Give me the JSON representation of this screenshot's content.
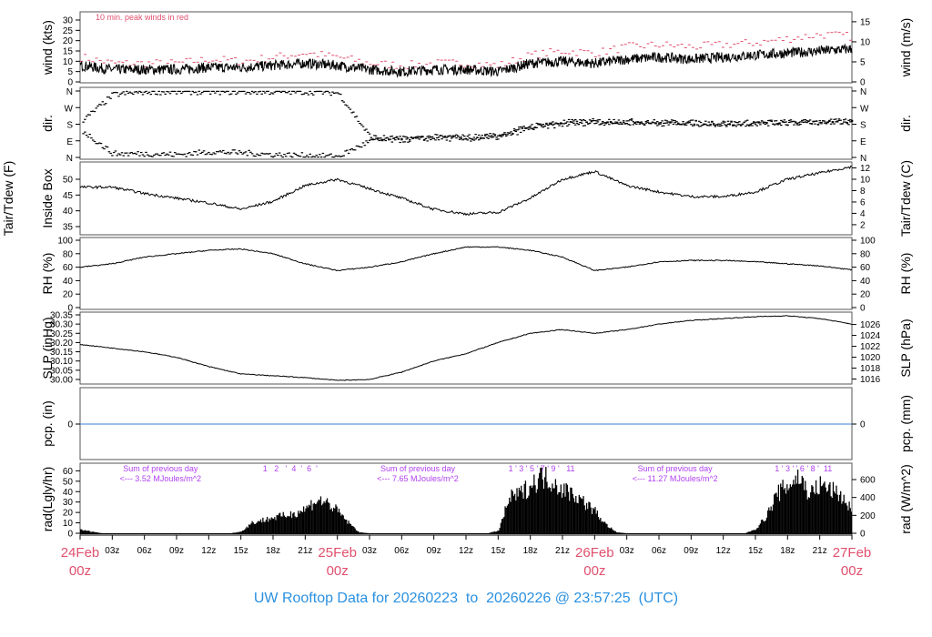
{
  "title": "UW Rooftop Data for 20260223  to  20260226 @ 23:57:25  (UTC)",
  "colors": {
    "peak": "#e0506e",
    "line": "#000000",
    "pcp": "#3a7fd0",
    "annotation": "#b040f0",
    "date": "#e0506e",
    "title": "#2a90e0"
  },
  "x_axis": {
    "range_hours": [
      0,
      72
    ],
    "hour_ticks": [
      "03z",
      "06z",
      "09z",
      "12z",
      "15z",
      "18z",
      "21z"
    ],
    "day_labels": [
      {
        "date": "24Feb",
        "hour": "00z"
      },
      {
        "date": "25Feb",
        "hour": "00z"
      },
      {
        "date": "26Feb",
        "hour": "00z"
      },
      {
        "date": "27Feb",
        "hour": "00z"
      }
    ]
  },
  "chart_data": [
    {
      "type": "line",
      "id": "wind",
      "ylabel": "wind (kts)",
      "ylabel_right": "wind (m/s)",
      "ylim": [
        0,
        32
      ],
      "yticks": [
        0,
        5,
        10,
        15,
        20,
        25,
        30
      ],
      "yticks_right": [
        0,
        5,
        10,
        15
      ],
      "annotation": "10 min. peak winds in red",
      "x_hours": [
        0,
        3,
        6,
        9,
        12,
        15,
        18,
        21,
        24,
        27,
        30,
        33,
        36,
        39,
        42,
        45,
        48,
        51,
        54,
        57,
        60,
        63,
        66,
        69,
        72
      ],
      "series": [
        {
          "name": "mean",
          "values": [
            8,
            6,
            6,
            6,
            7,
            7,
            8,
            9,
            8,
            6,
            5,
            6,
            6,
            5,
            9,
            10,
            9,
            11,
            12,
            11,
            12,
            13,
            14,
            15,
            16
          ]
        },
        {
          "name": "10 min. peak",
          "values": [
            12,
            9,
            9,
            9,
            11,
            10,
            12,
            14,
            12,
            9,
            8,
            9,
            9,
            8,
            13,
            15,
            14,
            17,
            18,
            17,
            18,
            19,
            21,
            23,
            22
          ]
        }
      ]
    },
    {
      "type": "scatter",
      "id": "dir",
      "ylabel": "dir.",
      "ylabel_right": "dir.",
      "yticks": [
        "N",
        "E",
        "S",
        "W",
        "N"
      ],
      "x_hours": [
        0,
        3,
        6,
        9,
        12,
        15,
        18,
        21,
        24,
        27,
        30,
        33,
        36,
        39,
        42,
        45,
        48,
        51,
        54,
        57,
        60,
        63,
        66,
        69,
        72
      ],
      "series": [
        {
          "name": "primary",
          "values": [
            190,
            340,
            355,
            355,
            355,
            355,
            355,
            355,
            350,
            110,
            100,
            110,
            110,
            120,
            170,
            190,
            195,
            195,
            190,
            188,
            185,
            188,
            190,
            192,
            195
          ]
        },
        {
          "name": "secondary",
          "values": [
            150,
            20,
            20,
            15,
            30,
            25,
            15,
            10,
            5,
            90,
            95,
            105,
            100,
            110,
            160,
            180,
            190,
            190,
            185,
            183,
            180,
            185,
            188,
            190,
            192
          ]
        }
      ]
    },
    {
      "type": "line",
      "id": "temp",
      "ylabel": "Tair/Tdew (F)",
      "ylabel2": "Inside Box",
      "ylabel_right": "Tair/Tdew (C)",
      "yticks": [
        35,
        40,
        45,
        50
      ],
      "yticks_right": [
        2,
        4,
        6,
        8,
        10,
        12
      ],
      "x_hours": [
        0,
        3,
        6,
        9,
        12,
        15,
        18,
        21,
        24,
        27,
        30,
        33,
        36,
        39,
        42,
        45,
        48,
        51,
        54,
        57,
        60,
        63,
        66,
        69,
        72
      ],
      "values": [
        47.5,
        47.5,
        45.5,
        44,
        42.5,
        40.5,
        43,
        48,
        50,
        47,
        44,
        40.5,
        39,
        39.5,
        44,
        50,
        52.5,
        48,
        46,
        44.5,
        44.5,
        46,
        50,
        52,
        54
      ]
    },
    {
      "type": "line",
      "id": "rh",
      "ylabel": "RH (%)",
      "ylabel_right": "RH (%)",
      "ylim": [
        0,
        100
      ],
      "yticks": [
        0,
        20,
        40,
        60,
        80,
        100
      ],
      "x_hours": [
        0,
        3,
        6,
        9,
        12,
        15,
        18,
        21,
        24,
        27,
        30,
        33,
        36,
        39,
        42,
        45,
        48,
        51,
        54,
        57,
        60,
        63,
        66,
        69,
        72
      ],
      "values": [
        60,
        65,
        75,
        80,
        85,
        87,
        80,
        65,
        55,
        60,
        68,
        80,
        90,
        90,
        85,
        75,
        55,
        60,
        68,
        70,
        70,
        68,
        65,
        62,
        56
      ]
    },
    {
      "type": "line",
      "id": "slp",
      "ylabel": "SLP (inHg)",
      "ylabel_right": "SLP (hPa)",
      "yticks": [
        "30.00",
        "30.05",
        "30.10",
        "30.15",
        "30.20",
        "30.25",
        "30.30",
        "30.35"
      ],
      "yticks_right": [
        1016,
        1018,
        1020,
        1022,
        1024,
        1026
      ],
      "x_hours": [
        0,
        3,
        6,
        9,
        12,
        15,
        18,
        21,
        24,
        27,
        30,
        33,
        36,
        39,
        42,
        45,
        48,
        51,
        54,
        57,
        60,
        63,
        66,
        69,
        72
      ],
      "values": [
        30.19,
        30.17,
        30.15,
        30.12,
        30.07,
        30.03,
        30.02,
        30.01,
        29.995,
        30.0,
        30.04,
        30.1,
        30.14,
        30.2,
        30.25,
        30.27,
        30.25,
        30.27,
        30.3,
        30.32,
        30.33,
        30.34,
        30.345,
        30.33,
        30.3
      ]
    },
    {
      "type": "line",
      "id": "pcp",
      "ylabel": "pcp. (in)",
      "ylabel_right": "pcp. (mm)",
      "yticks": [
        0
      ],
      "yticks_right": [
        0
      ],
      "x_hours": [
        0,
        72
      ],
      "values": [
        0,
        0
      ]
    },
    {
      "type": "area",
      "id": "rad",
      "ylabel": "rad(Lgly/hr)",
      "ylabel_right": "rad (W/m^2)",
      "yticks": [
        0,
        10,
        20,
        30,
        40,
        50,
        60
      ],
      "yticks_right": [
        0,
        200,
        400,
        600
      ],
      "unit": "W/m^2",
      "values_hourly": [
        40,
        20,
        0,
        0,
        0,
        0,
        0,
        0,
        0,
        0,
        0,
        0,
        0,
        0,
        0,
        20,
        120,
        150,
        180,
        200,
        230,
        280,
        380,
        350,
        250,
        120,
        10,
        0,
        0,
        0,
        0,
        0,
        0,
        0,
        0,
        0,
        0,
        0,
        0,
        30,
        400,
        450,
        550,
        650,
        600,
        500,
        450,
        350,
        250,
        100,
        10,
        0,
        0,
        0,
        0,
        0,
        0,
        0,
        0,
        0,
        0,
        0,
        0,
        50,
        200,
        450,
        550,
        650,
        450,
        550,
        500,
        420,
        250
      ],
      "annotations": [
        {
          "line1": "Sum of previous day",
          "line2": "<--- 3.52 MJoules/m^2",
          "marks": "1   2   '  4  '  6  '"
        },
        {
          "line1": "Sum of previous day",
          "line2": "<--- 7.65 MJoules/m^2",
          "marks": "1 ' 3 ' 5 ' 7 ' 9 '   11"
        },
        {
          "line1": "Sum of previous day",
          "line2": "<--- 11.27 MJoules/m^2",
          "marks": "1 ' 3 ' ' 6 ' 8 '  11"
        }
      ]
    }
  ]
}
